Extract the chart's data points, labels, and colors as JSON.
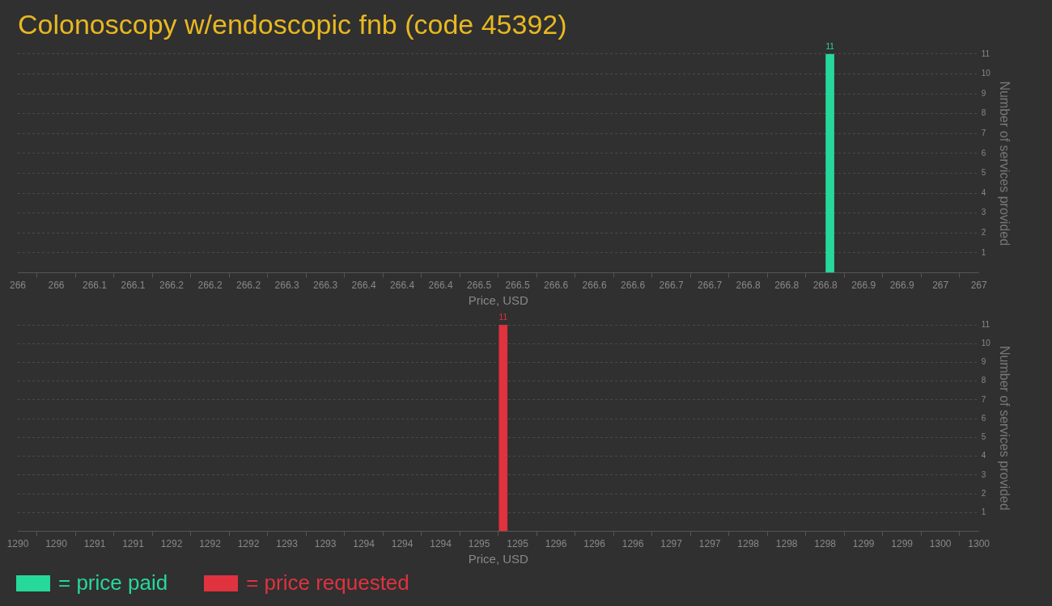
{
  "chart_data": [
    {
      "type": "bar",
      "title": "Colonoscopy w/endoscopic fnb (code 45392)",
      "xlabel": "Price, USD",
      "ylabel": "Number of services provided",
      "x": [
        266.845
      ],
      "series": [
        {
          "name": "= price paid",
          "color": "#27d89b",
          "values": [
            11
          ]
        }
      ],
      "xlim": [
        266,
        267
      ],
      "xticks": [
        {
          "value": 266,
          "label": "266"
        },
        {
          "value": 266.04,
          "label": "266"
        },
        {
          "value": 266.08,
          "label": "266.1"
        },
        {
          "value": 266.12,
          "label": "266.1"
        },
        {
          "value": 266.16,
          "label": "266.2"
        },
        {
          "value": 266.2,
          "label": "266.2"
        },
        {
          "value": 266.24,
          "label": "266.2"
        },
        {
          "value": 266.28,
          "label": "266.3"
        },
        {
          "value": 266.32,
          "label": "266.3"
        },
        {
          "value": 266.36,
          "label": "266.4"
        },
        {
          "value": 266.4,
          "label": "266.4"
        },
        {
          "value": 266.44,
          "label": "266.4"
        },
        {
          "value": 266.48,
          "label": "266.5"
        },
        {
          "value": 266.52,
          "label": "266.5"
        },
        {
          "value": 266.56,
          "label": "266.6"
        },
        {
          "value": 266.6,
          "label": "266.6"
        },
        {
          "value": 266.64,
          "label": "266.6"
        },
        {
          "value": 266.68,
          "label": "266.7"
        },
        {
          "value": 266.72,
          "label": "266.7"
        },
        {
          "value": 266.76,
          "label": "266.8"
        },
        {
          "value": 266.8,
          "label": "266.8"
        },
        {
          "value": 266.84,
          "label": "266.8"
        },
        {
          "value": 266.88,
          "label": "266.9"
        },
        {
          "value": 266.92,
          "label": "266.9"
        },
        {
          "value": 266.96,
          "label": "267"
        },
        {
          "value": 267,
          "label": "267"
        }
      ],
      "ylim": [
        0,
        11
      ],
      "yticks": [
        {
          "value": 0,
          "label": null
        },
        1,
        2,
        3,
        4,
        5,
        6,
        7,
        8,
        9,
        10,
        11
      ],
      "grid": "y",
      "data_labels": true,
      "legend": "bottom"
    },
    {
      "type": "bar",
      "xlabel": "Price, USD",
      "ylabel": "Number of services provided",
      "x": [
        1295.05
      ],
      "series": [
        {
          "name": "= price requested",
          "color": "#e0323f",
          "values": [
            11
          ]
        }
      ],
      "xlim": [
        1290,
        1300
      ],
      "xticks": [
        {
          "value": 1290,
          "label": "1290"
        },
        {
          "value": 1290.4,
          "label": "1290"
        },
        {
          "value": 1290.8,
          "label": "1291"
        },
        {
          "value": 1291.2,
          "label": "1291"
        },
        {
          "value": 1291.6,
          "label": "1292"
        },
        {
          "value": 1292,
          "label": "1292"
        },
        {
          "value": 1292.4,
          "label": "1292"
        },
        {
          "value": 1292.8,
          "label": "1293"
        },
        {
          "value": 1293.2,
          "label": "1293"
        },
        {
          "value": 1293.6,
          "label": "1294"
        },
        {
          "value": 1294,
          "label": "1294"
        },
        {
          "value": 1294.4,
          "label": "1294"
        },
        {
          "value": 1294.8,
          "label": "1295"
        },
        {
          "value": 1295.2,
          "label": "1295"
        },
        {
          "value": 1295.6,
          "label": "1296"
        },
        {
          "value": 1296,
          "label": "1296"
        },
        {
          "value": 1296.4,
          "label": "1296"
        },
        {
          "value": 1296.8,
          "label": "1297"
        },
        {
          "value": 1297.2,
          "label": "1297"
        },
        {
          "value": 1297.6,
          "label": "1298"
        },
        {
          "value": 1298,
          "label": "1298"
        },
        {
          "value": 1298.4,
          "label": "1298"
        },
        {
          "value": 1298.8,
          "label": "1299"
        },
        {
          "value": 1299.2,
          "label": "1299"
        },
        {
          "value": 1299.6,
          "label": "1300"
        },
        {
          "value": 1300,
          "label": "1300"
        }
      ],
      "ylim": [
        0,
        11
      ],
      "yticks": [
        {
          "value": 0,
          "label": null
        },
        1,
        2,
        3,
        4,
        5,
        6,
        7,
        8,
        9,
        10,
        11
      ],
      "grid": "y",
      "data_labels": true,
      "legend": "bottom"
    }
  ]
}
